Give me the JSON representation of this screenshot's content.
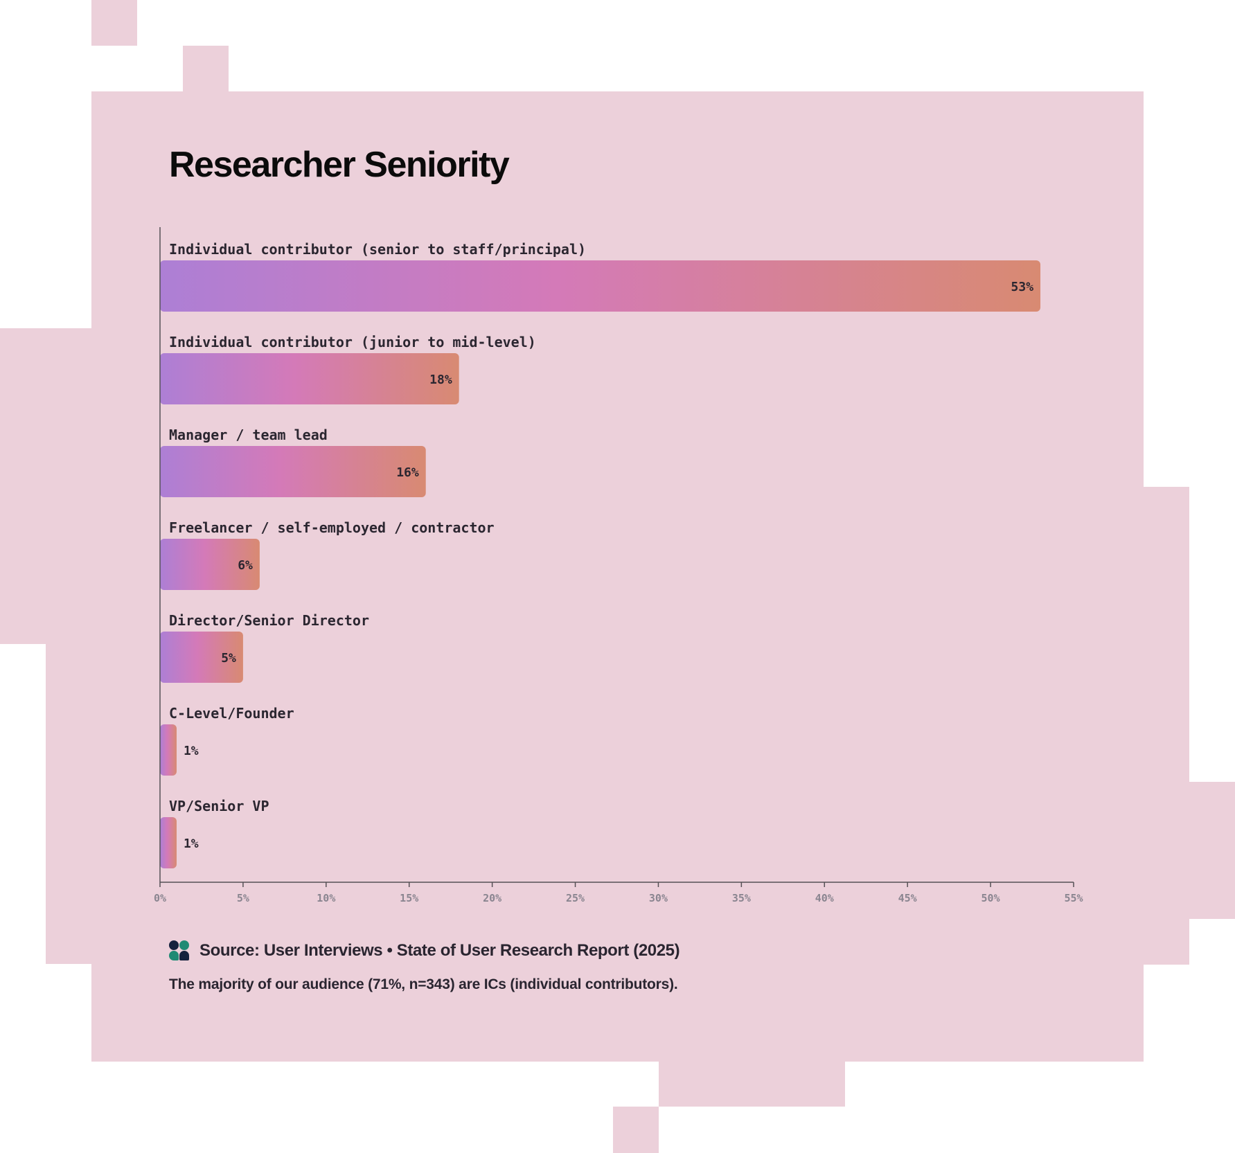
{
  "title": "Researcher Seniority",
  "colors": {
    "background_block": "#ecd0da",
    "bar_gradient": [
      "#ad7fd5",
      "#d47ab8",
      "#d88a72"
    ],
    "axis": "#555055",
    "text": "#2b2630"
  },
  "chart_data": {
    "type": "bar",
    "orientation": "horizontal",
    "categories": [
      "Individual contributor (senior to staff/principal)",
      "Individual contributor (junior to mid-level)",
      "Manager / team lead",
      "Freelancer / self-employed / contractor",
      "Director/Senior Director",
      "C-Level/Founder",
      "VP/Senior VP"
    ],
    "values": [
      53,
      18,
      16,
      6,
      5,
      1,
      1
    ],
    "value_labels": [
      "53%",
      "18%",
      "16%",
      "6%",
      "5%",
      "1%",
      "1%"
    ],
    "xlim": [
      0,
      55
    ],
    "x_ticks": [
      "0%",
      "5%",
      "10%",
      "15%",
      "20%",
      "25%",
      "30%",
      "35%",
      "40%",
      "45%",
      "50%",
      "55%"
    ],
    "xlabel": "",
    "ylabel": "",
    "grid": false,
    "legend": "none"
  },
  "source": {
    "logo_icon": "user-interviews-logo-icon",
    "text": "Source: User Interviews • State of User Research Report (2025)"
  },
  "note": "The majority of our audience (71%, n=343) are ICs (individual contributors)."
}
